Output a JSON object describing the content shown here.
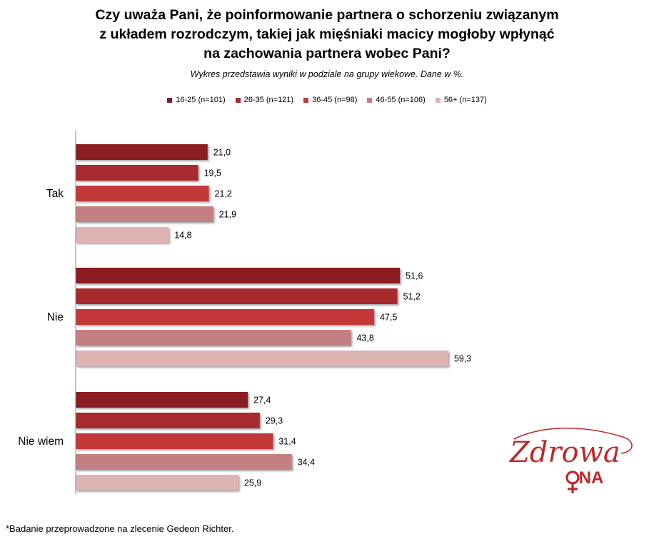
{
  "title_lines": [
    "Czy uważa Pani, że poinformowanie partnera o schorzeniu związanym",
    "z układem rozrodczym, takiej jak mięśniaki macicy mogłoby wpłynąć",
    "na zachowania partnera wobec Pani?"
  ],
  "subtitle": "Wykres przedstawia wyniki w podziale na grupy wiekowe. Dane w %.",
  "footnote": "*Badanie przeprowadzone na zlecenie Gedeon Richter.",
  "logo": {
    "line1": "Zdrowa",
    "line2": "ONA"
  },
  "chart_data": {
    "type": "bar",
    "orientation": "horizontal",
    "categories": [
      "Tak",
      "Nie",
      "Nie wiem"
    ],
    "series": [
      {
        "name": "16-25 (n=101)",
        "color": "#8b1c22",
        "values": [
          21.0,
          51.6,
          27.4
        ],
        "labels": [
          "21,0",
          "51,6",
          "27,4"
        ]
      },
      {
        "name": "26-35 (n=121)",
        "color": "#a82a2e",
        "values": [
          19.5,
          51.2,
          29.3
        ],
        "labels": [
          "19,5",
          "51,2",
          "29,3"
        ]
      },
      {
        "name": "36-45 (n=98)",
        "color": "#c2393a",
        "values": [
          21.2,
          47.5,
          31.4
        ],
        "labels": [
          "21,2",
          "47,5",
          "31,4"
        ]
      },
      {
        "name": "46-55 (n=106)",
        "color": "#c47f82",
        "values": [
          21.9,
          43.8,
          34.4
        ],
        "labels": [
          "21,9",
          "43,8",
          "34,4"
        ]
      },
      {
        "name": "56+ (n=137)",
        "color": "#deb3b4",
        "values": [
          14.8,
          59.3,
          25.9
        ],
        "labels": [
          "14,8",
          "59,3",
          "25,9"
        ]
      }
    ],
    "legend_position": "top",
    "grid": false,
    "xlim": [
      0,
      70
    ]
  }
}
